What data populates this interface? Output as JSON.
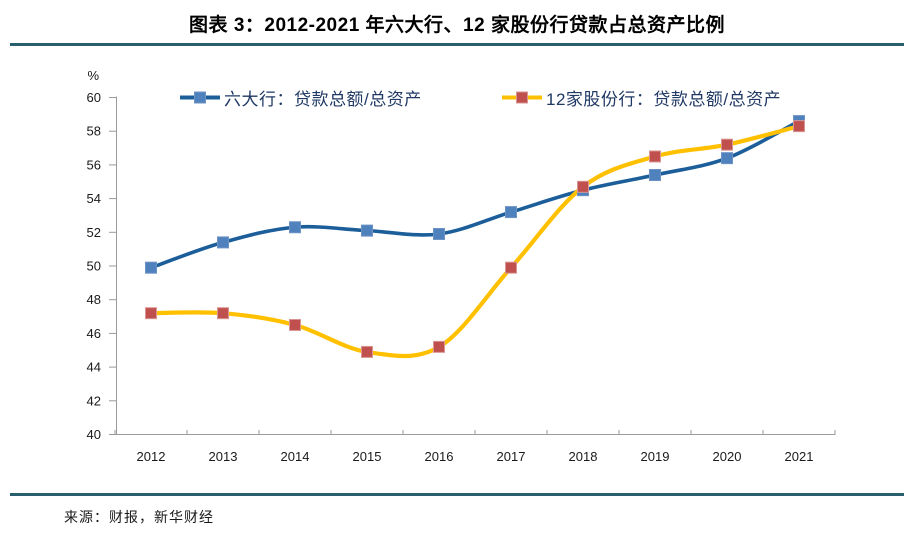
{
  "title": "图表 3：2012-2021 年六大行、12 家股份行贷款占总资产比例",
  "source": "来源：财报，新华财经",
  "colors": {
    "divider": "#275F6C",
    "legend_text": "#1F3864",
    "axis_line": "#9A9A9A",
    "tick_text": "#1A1A1A"
  },
  "chart_data": {
    "type": "line",
    "smooth": true,
    "grid": false,
    "legend_position": "top",
    "title": "图表 3：2012-2021 年六大行、12 家股份行贷款占总资产比例",
    "xlabel": "",
    "ylabel": "%",
    "ylim": [
      40,
      60
    ],
    "ytick_step": 2,
    "categories": [
      "2012",
      "2013",
      "2014",
      "2015",
      "2016",
      "2017",
      "2018",
      "2019",
      "2020",
      "2021"
    ],
    "series": [
      {
        "name": "六大行：贷款总额/总资产",
        "values": [
          49.9,
          51.4,
          52.3,
          52.1,
          51.9,
          53.2,
          54.5,
          55.4,
          56.4,
          58.6
        ],
        "line_color": "#1B5E99",
        "marker_color": "#4F81BD",
        "marker_border": "#6C92C6"
      },
      {
        "name": "12家股份行：贷款总额/总资产",
        "values": [
          47.2,
          47.2,
          46.5,
          44.9,
          45.2,
          49.9,
          54.7,
          56.5,
          57.2,
          58.3
        ],
        "line_color": "#FFC000",
        "marker_color": "#C0504D",
        "marker_border": "#D99694"
      }
    ]
  }
}
